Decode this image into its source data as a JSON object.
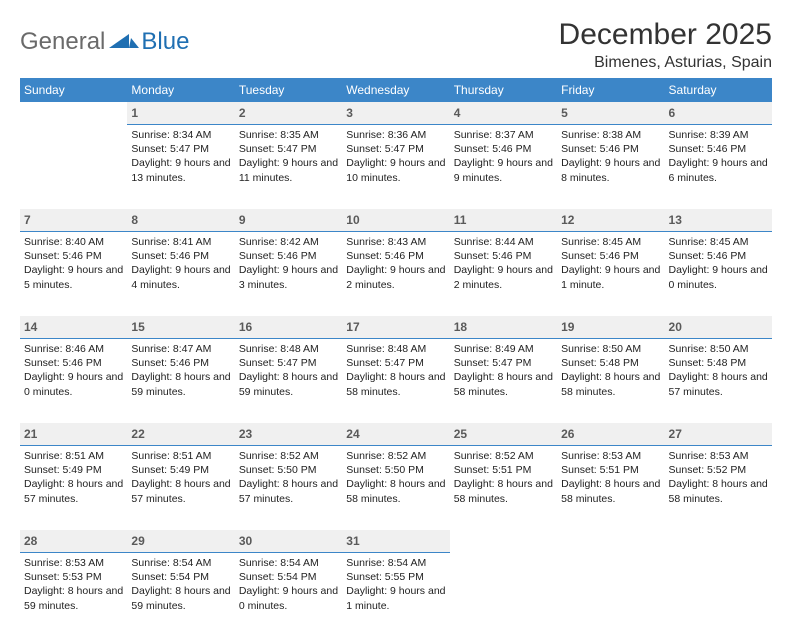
{
  "logo": {
    "general": "General",
    "blue": "Blue"
  },
  "title": "December 2025",
  "location": "Bimenes, Asturias, Spain",
  "colors": {
    "header_bg": "#3c86c8",
    "header_text": "#ffffff",
    "daynum_bg": "#f0f0f0",
    "daynum_border": "#3c86c8",
    "text": "#222222",
    "logo_gray": "#6a6a6a",
    "logo_blue": "#1f6fb2"
  },
  "fonts": {
    "family": "Arial",
    "title_size": 30,
    "location_size": 16,
    "dayhead_size": 12,
    "cell_size": 10.5
  },
  "dayHeaders": [
    "Sunday",
    "Monday",
    "Tuesday",
    "Wednesday",
    "Thursday",
    "Friday",
    "Saturday"
  ],
  "weeks": [
    {
      "nums": [
        "",
        "1",
        "2",
        "3",
        "4",
        "5",
        "6"
      ],
      "cells": {
        "0": "",
        "1": "Sunrise: 8:34 AM\nSunset: 5:47 PM\nDaylight: 9 hours and 13 minutes.",
        "2": "Sunrise: 8:35 AM\nSunset: 5:47 PM\nDaylight: 9 hours and 11 minutes.",
        "3": "Sunrise: 8:36 AM\nSunset: 5:47 PM\nDaylight: 9 hours and 10 minutes.",
        "4": "Sunrise: 8:37 AM\nSunset: 5:46 PM\nDaylight: 9 hours and 9 minutes.",
        "5": "Sunrise: 8:38 AM\nSunset: 5:46 PM\nDaylight: 9 hours and 8 minutes.",
        "6": "Sunrise: 8:39 AM\nSunset: 5:46 PM\nDaylight: 9 hours and 6 minutes."
      }
    },
    {
      "nums": [
        "7",
        "8",
        "9",
        "10",
        "11",
        "12",
        "13"
      ],
      "cells": {
        "0": "Sunrise: 8:40 AM\nSunset: 5:46 PM\nDaylight: 9 hours and 5 minutes.",
        "1": "Sunrise: 8:41 AM\nSunset: 5:46 PM\nDaylight: 9 hours and 4 minutes.",
        "2": "Sunrise: 8:42 AM\nSunset: 5:46 PM\nDaylight: 9 hours and 3 minutes.",
        "3": "Sunrise: 8:43 AM\nSunset: 5:46 PM\nDaylight: 9 hours and 2 minutes.",
        "4": "Sunrise: 8:44 AM\nSunset: 5:46 PM\nDaylight: 9 hours and 2 minutes.",
        "5": "Sunrise: 8:45 AM\nSunset: 5:46 PM\nDaylight: 9 hours and 1 minute.",
        "6": "Sunrise: 8:45 AM\nSunset: 5:46 PM\nDaylight: 9 hours and 0 minutes."
      }
    },
    {
      "nums": [
        "14",
        "15",
        "16",
        "17",
        "18",
        "19",
        "20"
      ],
      "cells": {
        "0": "Sunrise: 8:46 AM\nSunset: 5:46 PM\nDaylight: 9 hours and 0 minutes.",
        "1": "Sunrise: 8:47 AM\nSunset: 5:46 PM\nDaylight: 8 hours and 59 minutes.",
        "2": "Sunrise: 8:48 AM\nSunset: 5:47 PM\nDaylight: 8 hours and 59 minutes.",
        "3": "Sunrise: 8:48 AM\nSunset: 5:47 PM\nDaylight: 8 hours and 58 minutes.",
        "4": "Sunrise: 8:49 AM\nSunset: 5:47 PM\nDaylight: 8 hours and 58 minutes.",
        "5": "Sunrise: 8:50 AM\nSunset: 5:48 PM\nDaylight: 8 hours and 58 minutes.",
        "6": "Sunrise: 8:50 AM\nSunset: 5:48 PM\nDaylight: 8 hours and 57 minutes."
      }
    },
    {
      "nums": [
        "21",
        "22",
        "23",
        "24",
        "25",
        "26",
        "27"
      ],
      "cells": {
        "0": "Sunrise: 8:51 AM\nSunset: 5:49 PM\nDaylight: 8 hours and 57 minutes.",
        "1": "Sunrise: 8:51 AM\nSunset: 5:49 PM\nDaylight: 8 hours and 57 minutes.",
        "2": "Sunrise: 8:52 AM\nSunset: 5:50 PM\nDaylight: 8 hours and 57 minutes.",
        "3": "Sunrise: 8:52 AM\nSunset: 5:50 PM\nDaylight: 8 hours and 58 minutes.",
        "4": "Sunrise: 8:52 AM\nSunset: 5:51 PM\nDaylight: 8 hours and 58 minutes.",
        "5": "Sunrise: 8:53 AM\nSunset: 5:51 PM\nDaylight: 8 hours and 58 minutes.",
        "6": "Sunrise: 8:53 AM\nSunset: 5:52 PM\nDaylight: 8 hours and 58 minutes."
      }
    },
    {
      "nums": [
        "28",
        "29",
        "30",
        "31",
        "",
        "",
        ""
      ],
      "cells": {
        "0": "Sunrise: 8:53 AM\nSunset: 5:53 PM\nDaylight: 8 hours and 59 minutes.",
        "1": "Sunrise: 8:54 AM\nSunset: 5:54 PM\nDaylight: 8 hours and 59 minutes.",
        "2": "Sunrise: 8:54 AM\nSunset: 5:54 PM\nDaylight: 9 hours and 0 minutes.",
        "3": "Sunrise: 8:54 AM\nSunset: 5:55 PM\nDaylight: 9 hours and 1 minute.",
        "4": "",
        "5": "",
        "6": ""
      }
    }
  ]
}
